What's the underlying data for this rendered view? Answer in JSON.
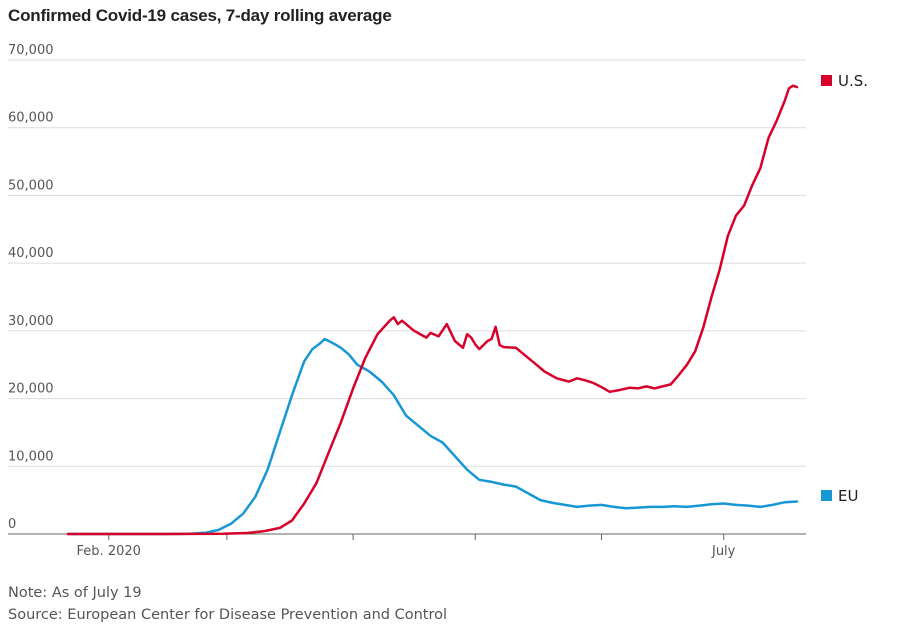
{
  "chart_data": {
    "type": "line",
    "title": "Confirmed Covid-19 cases, 7-day rolling average",
    "note": "Note: As of July 19",
    "source": "Source: European Center for Disease Prevention and Control",
    "ylim": [
      0,
      70000
    ],
    "yticks": [
      {
        "value": 0,
        "label": "0"
      },
      {
        "value": 10000,
        "label": "10,000"
      },
      {
        "value": 20000,
        "label": "20,000"
      },
      {
        "value": 30000,
        "label": "30,000"
      },
      {
        "value": 40000,
        "label": "40,000"
      },
      {
        "value": 50000,
        "label": "50,000"
      },
      {
        "value": 60000,
        "label": "60,000"
      },
      {
        "value": 70000,
        "label": "70,000"
      }
    ],
    "x_range": [
      "2020-01-22",
      "2020-07-19"
    ],
    "xticks": [
      {
        "date": "2020-02-01",
        "label": "Feb. 2020"
      },
      {
        "date": "2020-03-01",
        "label": ""
      },
      {
        "date": "2020-04-01",
        "label": ""
      },
      {
        "date": "2020-05-01",
        "label": ""
      },
      {
        "date": "2020-06-01",
        "label": ""
      },
      {
        "date": "2020-07-01",
        "label": "July"
      }
    ],
    "grid": true,
    "legend_placement": "right, at line ends",
    "series": [
      {
        "name": "U.S.",
        "color": "#d7002a",
        "points": [
          [
            "2020-01-22",
            0
          ],
          [
            "2020-02-15",
            0
          ],
          [
            "2020-02-29",
            50
          ],
          [
            "2020-03-06",
            150
          ],
          [
            "2020-03-10",
            400
          ],
          [
            "2020-03-14",
            900
          ],
          [
            "2020-03-17",
            2000
          ],
          [
            "2020-03-20",
            4500
          ],
          [
            "2020-03-23",
            7500
          ],
          [
            "2020-03-26",
            12000
          ],
          [
            "2020-03-29",
            16500
          ],
          [
            "2020-04-01",
            21500
          ],
          [
            "2020-04-04",
            26000
          ],
          [
            "2020-04-07",
            29500
          ],
          [
            "2020-04-10",
            31500
          ],
          [
            "2020-04-11",
            32000
          ],
          [
            "2020-04-12",
            31000
          ],
          [
            "2020-04-13",
            31500
          ],
          [
            "2020-04-16",
            30000
          ],
          [
            "2020-04-19",
            29000
          ],
          [
            "2020-04-20",
            29700
          ],
          [
            "2020-04-22",
            29200
          ],
          [
            "2020-04-24",
            31000
          ],
          [
            "2020-04-26",
            28500
          ],
          [
            "2020-04-28",
            27500
          ],
          [
            "2020-04-29",
            29500
          ],
          [
            "2020-04-30",
            29000
          ],
          [
            "2020-05-01",
            28000
          ],
          [
            "2020-05-02",
            27300
          ],
          [
            "2020-05-04",
            28500
          ],
          [
            "2020-05-05",
            28800
          ],
          [
            "2020-05-06",
            30600
          ],
          [
            "2020-05-07",
            27900
          ],
          [
            "2020-05-08",
            27600
          ],
          [
            "2020-05-11",
            27500
          ],
          [
            "2020-05-13",
            26500
          ],
          [
            "2020-05-15",
            25500
          ],
          [
            "2020-05-18",
            24000
          ],
          [
            "2020-05-21",
            23000
          ],
          [
            "2020-05-24",
            22500
          ],
          [
            "2020-05-26",
            23000
          ],
          [
            "2020-05-28",
            22700
          ],
          [
            "2020-05-30",
            22300
          ],
          [
            "2020-06-01",
            21700
          ],
          [
            "2020-06-03",
            21000
          ],
          [
            "2020-06-05",
            21200
          ],
          [
            "2020-06-08",
            21600
          ],
          [
            "2020-06-10",
            21500
          ],
          [
            "2020-06-12",
            21800
          ],
          [
            "2020-06-14",
            21500
          ],
          [
            "2020-06-16",
            21800
          ],
          [
            "2020-06-18",
            22100
          ],
          [
            "2020-06-20",
            23500
          ],
          [
            "2020-06-22",
            25000
          ],
          [
            "2020-06-24",
            27000
          ],
          [
            "2020-06-26",
            30500
          ],
          [
            "2020-06-28",
            35000
          ],
          [
            "2020-06-30",
            39000
          ],
          [
            "2020-07-02",
            44000
          ],
          [
            "2020-07-04",
            47000
          ],
          [
            "2020-07-06",
            48500
          ],
          [
            "2020-07-08",
            51500
          ],
          [
            "2020-07-10",
            54000
          ],
          [
            "2020-07-12",
            58500
          ],
          [
            "2020-07-14",
            61000
          ],
          [
            "2020-07-16",
            64000
          ],
          [
            "2020-07-17",
            65800
          ],
          [
            "2020-07-18",
            66200
          ],
          [
            "2020-07-19",
            66000
          ]
        ]
      },
      {
        "name": "EU",
        "color": "#1897d5",
        "points": [
          [
            "2020-01-22",
            0
          ],
          [
            "2020-02-15",
            0
          ],
          [
            "2020-02-21",
            50
          ],
          [
            "2020-02-25",
            200
          ],
          [
            "2020-02-28",
            600
          ],
          [
            "2020-03-02",
            1500
          ],
          [
            "2020-03-05",
            3000
          ],
          [
            "2020-03-08",
            5500
          ],
          [
            "2020-03-11",
            9500
          ],
          [
            "2020-03-14",
            15000
          ],
          [
            "2020-03-17",
            20500
          ],
          [
            "2020-03-20",
            25500
          ],
          [
            "2020-03-22",
            27300
          ],
          [
            "2020-03-24",
            28200
          ],
          [
            "2020-03-25",
            28800
          ],
          [
            "2020-03-27",
            28200
          ],
          [
            "2020-03-29",
            27500
          ],
          [
            "2020-03-31",
            26500
          ],
          [
            "2020-04-02",
            25000
          ],
          [
            "2020-04-05",
            24000
          ],
          [
            "2020-04-08",
            22500
          ],
          [
            "2020-04-11",
            20500
          ],
          [
            "2020-04-14",
            17500
          ],
          [
            "2020-04-17",
            16000
          ],
          [
            "2020-04-20",
            14500
          ],
          [
            "2020-04-23",
            13500
          ],
          [
            "2020-04-26",
            11500
          ],
          [
            "2020-04-29",
            9500
          ],
          [
            "2020-05-02",
            8000
          ],
          [
            "2020-05-05",
            7700
          ],
          [
            "2020-05-08",
            7300
          ],
          [
            "2020-05-11",
            7000
          ],
          [
            "2020-05-14",
            6000
          ],
          [
            "2020-05-17",
            5000
          ],
          [
            "2020-05-20",
            4600
          ],
          [
            "2020-05-23",
            4300
          ],
          [
            "2020-05-26",
            4000
          ],
          [
            "2020-05-29",
            4200
          ],
          [
            "2020-06-01",
            4300
          ],
          [
            "2020-06-04",
            4000
          ],
          [
            "2020-06-07",
            3800
          ],
          [
            "2020-06-10",
            3900
          ],
          [
            "2020-06-13",
            4000
          ],
          [
            "2020-06-16",
            4000
          ],
          [
            "2020-06-19",
            4100
          ],
          [
            "2020-06-22",
            4000
          ],
          [
            "2020-06-25",
            4200
          ],
          [
            "2020-06-28",
            4400
          ],
          [
            "2020-07-01",
            4500
          ],
          [
            "2020-07-04",
            4300
          ],
          [
            "2020-07-07",
            4200
          ],
          [
            "2020-07-10",
            4000
          ],
          [
            "2020-07-13",
            4300
          ],
          [
            "2020-07-16",
            4700
          ],
          [
            "2020-07-19",
            4800
          ]
        ]
      }
    ]
  }
}
